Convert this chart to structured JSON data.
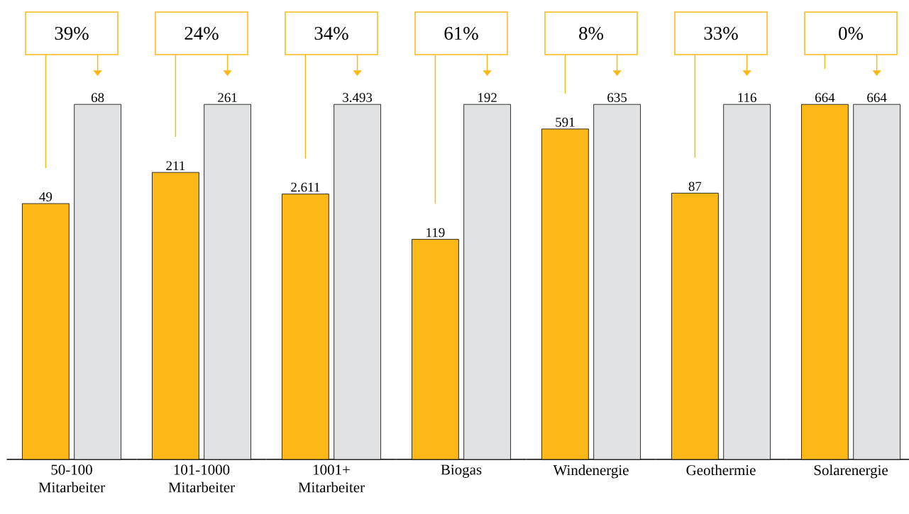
{
  "chart_data": [
    {
      "type": "bar",
      "categories": [
        "50-100 Mitarbeiter"
      ],
      "series": [
        {
          "color": "#fbb817",
          "values": [
            49
          ]
        },
        {
          "color": "#e1e2e4",
          "values": [
            68
          ]
        }
      ],
      "data_labels": true,
      "annotations": [
        "39%"
      ]
    },
    {
      "type": "bar",
      "categories": [
        "101-1000 Mitarbeiter"
      ],
      "series": [
        {
          "color": "#fbb817",
          "values": [
            211
          ]
        },
        {
          "color": "#e1e2e4",
          "values": [
            261
          ]
        }
      ],
      "data_labels": true,
      "annotations": [
        "24%"
      ]
    },
    {
      "type": "bar",
      "categories": [
        "1001+ Mitarbeiter"
      ],
      "series": [
        {
          "color": "#fbb817",
          "values": [
            2611
          ],
          "value_labels": [
            "2.611"
          ]
        },
        {
          "color": "#e1e2e4",
          "values": [
            3493
          ],
          "value_labels": [
            "3.493"
          ]
        }
      ],
      "annotations": [
        "34%"
      ]
    },
    {
      "type": "bar",
      "categories": [
        "Biogas"
      ],
      "series": [
        {
          "color": "#fbb817",
          "values": [
            119
          ]
        },
        {
          "color": "#e1e2e4",
          "values": [
            192
          ]
        }
      ],
      "data_labels": true,
      "annotations": [
        "61%"
      ]
    },
    {
      "type": "bar",
      "categories": [
        "Windenergie"
      ],
      "series": [
        {
          "color": "#fbb817",
          "values": [
            591
          ]
        },
        {
          "color": "#e1e2e4",
          "values": [
            635
          ]
        }
      ],
      "data_labels": true,
      "annotations": [
        "8%"
      ]
    },
    {
      "type": "bar",
      "categories": [
        "Geothermie"
      ],
      "series": [
        {
          "color": "#fbb817",
          "values": [
            87
          ]
        },
        {
          "color": "#e1e2e4",
          "values": [
            116
          ]
        }
      ],
      "data_labels": true,
      "annotations": [
        "33%"
      ]
    },
    {
      "type": "bar",
      "categories": [
        "Solarenergie"
      ],
      "series": [
        {
          "color": "#fbb817",
          "values": [
            664
          ]
        },
        {
          "color": "#e1e2e4",
          "values": [
            664
          ]
        }
      ],
      "data_labels": true,
      "annotations": [
        "0%"
      ]
    }
  ]
}
